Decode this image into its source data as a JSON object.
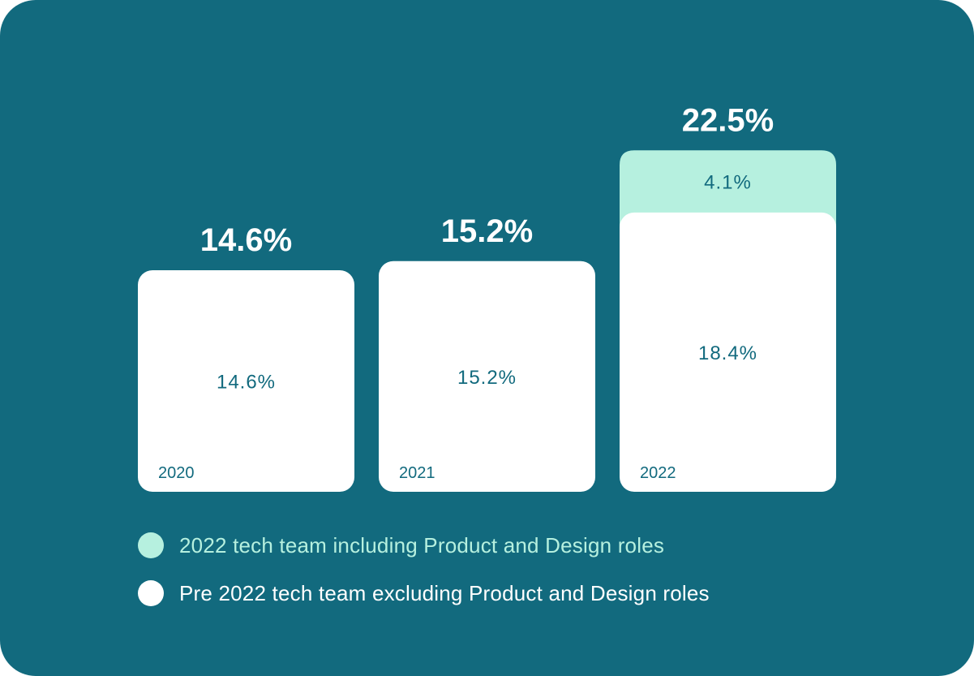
{
  "colors": {
    "background": "#126a7e",
    "base_bar": "#ffffff",
    "increment_bar": "#b6f0df",
    "label_dark": "#126a7e",
    "total_label": "#ffffff"
  },
  "chart_data": {
    "type": "bar",
    "stacked": true,
    "categories": [
      "2020",
      "2021",
      "2022"
    ],
    "series": [
      {
        "name": "Pre 2022 tech team excluding Product and Design roles",
        "values": [
          14.6,
          15.2,
          18.4
        ],
        "labels": [
          "14.6%",
          "15.2%",
          "18.4%"
        ],
        "color": "#ffffff"
      },
      {
        "name": "2022 tech team including Product and Design roles",
        "values": [
          0,
          0,
          4.1
        ],
        "labels": [
          "",
          "",
          "4.1%"
        ],
        "color": "#b6f0df"
      }
    ],
    "totals": [
      14.6,
      15.2,
      22.5
    ],
    "total_labels": [
      "14.6%",
      "15.2%",
      "22.5%"
    ],
    "title": "",
    "xlabel": "",
    "ylabel": "",
    "ylim": [
      0,
      22.5
    ],
    "unit": "%",
    "legend_position": "bottom-left"
  },
  "legend": {
    "items": [
      {
        "label": "2022 tech team including Product and Design roles",
        "color": "#b6f0df",
        "text_color": "#b6f0df"
      },
      {
        "label": "Pre 2022 tech team excluding Product and Design roles",
        "color": "#ffffff",
        "text_color": "#ffffff"
      }
    ]
  }
}
